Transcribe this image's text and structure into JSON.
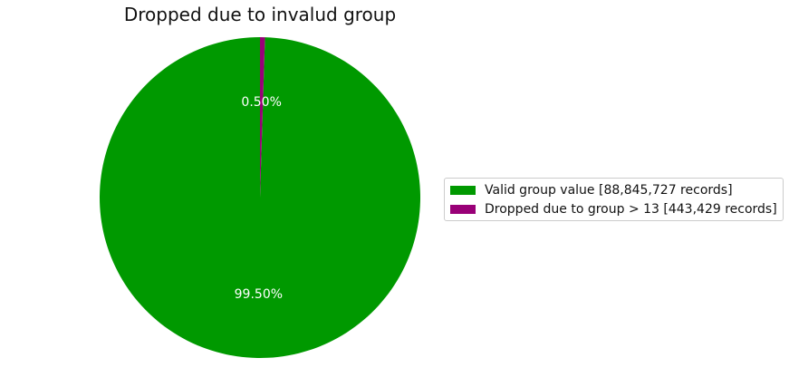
{
  "chart_data": {
    "type": "pie",
    "title": "Dropped due to invalud group",
    "slices": [
      {
        "label": "Valid group value [88,845,727 records]",
        "value": 88845727,
        "pct_label": "99.50%",
        "color": "#009900"
      },
      {
        "label": "Dropped due to group > 13 [443,429 records]",
        "value": 443429,
        "pct_label": "0.50%",
        "color": "#990077"
      }
    ],
    "legend_position": "right"
  }
}
